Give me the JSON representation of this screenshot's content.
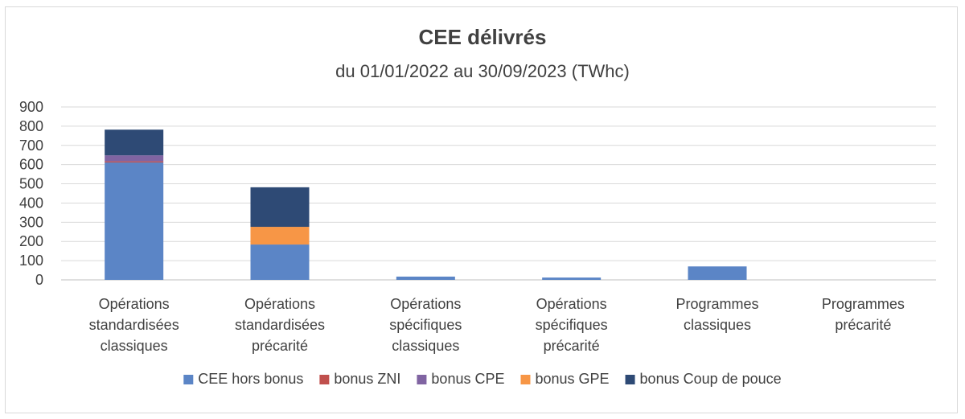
{
  "chart_data": {
    "type": "bar",
    "stacked": true,
    "title": "CEE délivrés",
    "subtitle": "du 01/01/2022 au 30/09/2023 (TWhc)",
    "xlabel": "",
    "ylabel": "",
    "ylim": [
      0,
      900
    ],
    "yticks": [
      0,
      100,
      200,
      300,
      400,
      500,
      600,
      700,
      800,
      900
    ],
    "grid": true,
    "legend_position": "bottom",
    "categories": [
      [
        "Opérations",
        "standardisées",
        "classiques"
      ],
      [
        "Opérations",
        "standardisées",
        "précarité"
      ],
      [
        "Opérations",
        "spécifiques",
        "classiques"
      ],
      [
        "Opérations",
        "spécifiques",
        "précarité"
      ],
      [
        "Programmes",
        "classiques"
      ],
      [
        "Programmes",
        "précarité"
      ]
    ],
    "series": [
      {
        "name": "CEE hors bonus",
        "color": "#5b85c6",
        "values": [
          611,
          184,
          17,
          12,
          70,
          0
        ]
      },
      {
        "name": "bonus ZNI",
        "color": "#c0504d",
        "values": [
          6,
          0,
          0,
          0,
          0,
          0
        ]
      },
      {
        "name": "bonus CPE",
        "color": "#8064a2",
        "values": [
          31,
          0,
          0,
          0,
          0,
          0
        ]
      },
      {
        "name": "bonus GPE",
        "color": "#f79646",
        "values": [
          0,
          92,
          0,
          0,
          0,
          0
        ]
      },
      {
        "name": "bonus Coup de pouce",
        "color": "#2e4a75",
        "values": [
          134,
          206,
          0,
          0,
          0,
          0
        ]
      }
    ]
  }
}
